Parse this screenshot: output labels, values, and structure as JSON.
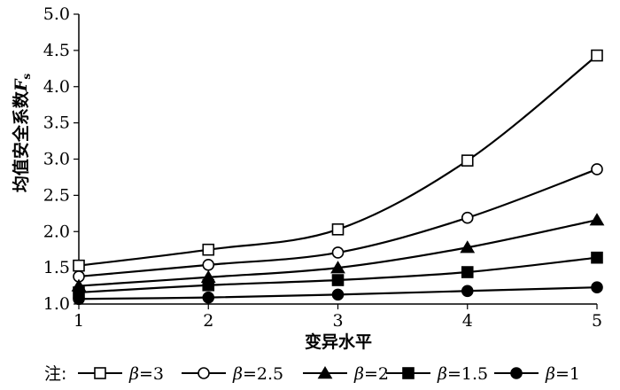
{
  "chart_data": {
    "type": "line",
    "xlabel": "变异水平",
    "ylabel_main": "均值安全系数",
    "ylabel_symbol": "F",
    "ylabel_sub": "s",
    "x": [
      1,
      2,
      3,
      4,
      5
    ],
    "xlim": [
      1,
      5
    ],
    "ylim": [
      1.0,
      5.0
    ],
    "x_ticks": [
      "1",
      "2",
      "3",
      "4",
      "5"
    ],
    "y_ticks": [
      "1.0",
      "1.5",
      "2.0",
      "2.5",
      "3.0",
      "3.5",
      "4.0",
      "4.5",
      "5.0"
    ],
    "grid": false,
    "legend_position": "bottom",
    "legend_prefix": "注:",
    "series": [
      {
        "name": "β=3",
        "greek": "β",
        "eq": "=3",
        "marker": "square-open",
        "values": [
          1.53,
          1.75,
          2.03,
          2.98,
          4.43
        ]
      },
      {
        "name": "β=2.5",
        "greek": "β",
        "eq": "=2.5",
        "marker": "circle-open",
        "values": [
          1.38,
          1.54,
          1.71,
          2.19,
          2.86
        ]
      },
      {
        "name": "β=2",
        "greek": "β",
        "eq": "=2",
        "marker": "triangle-filled",
        "values": [
          1.25,
          1.37,
          1.5,
          1.78,
          2.16
        ]
      },
      {
        "name": "β=1.5",
        "greek": "β",
        "eq": "=1.5",
        "marker": "square-filled",
        "values": [
          1.16,
          1.26,
          1.33,
          1.44,
          1.64
        ]
      },
      {
        "name": "β=1",
        "greek": "β",
        "eq": "=1",
        "marker": "circle-filled",
        "values": [
          1.07,
          1.09,
          1.13,
          1.18,
          1.23
        ]
      }
    ],
    "colors": {
      "line": "#000000",
      "marker_fill_open": "#ffffff",
      "marker_fill_solid": "#000000"
    }
  }
}
